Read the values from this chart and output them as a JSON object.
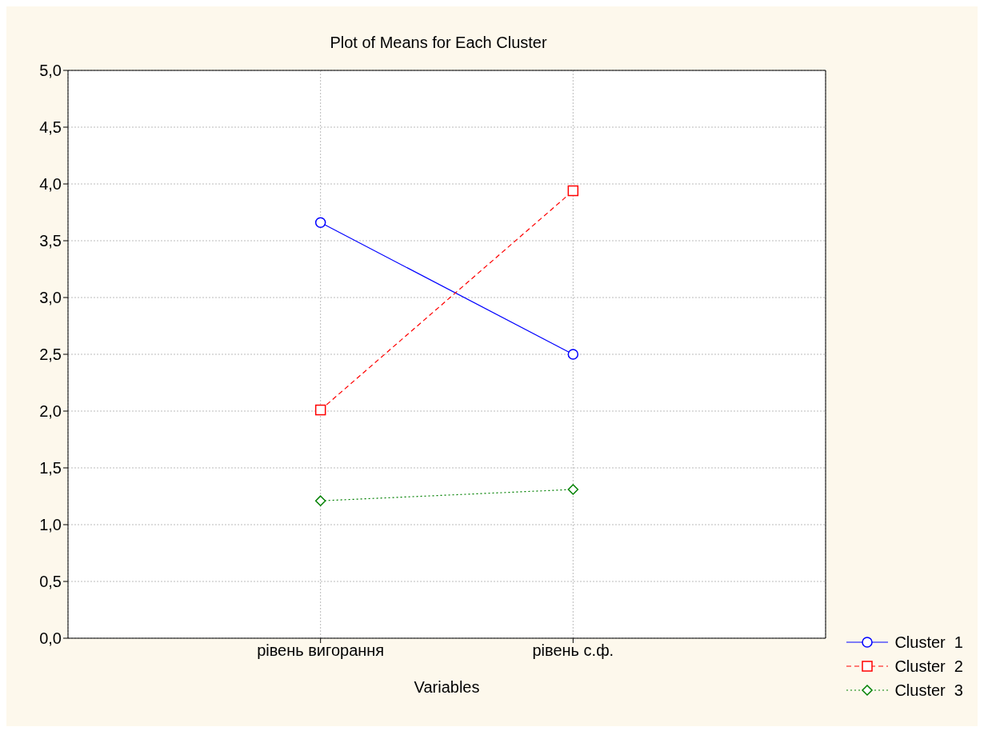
{
  "chart_data": {
    "type": "line",
    "title": "Plot of Means for Each Cluster",
    "xlabel": "Variables",
    "categories": [
      "рівень вигорання",
      "рівень с.ф."
    ],
    "series": [
      {
        "name": "Cluster  1",
        "color": "#0000ff",
        "values": [
          3.66,
          2.5
        ],
        "marker": "circle",
        "line_style": "solid"
      },
      {
        "name": "Cluster  2",
        "color": "#ff0000",
        "values": [
          2.01,
          3.94
        ],
        "marker": "square",
        "line_style": "dashed"
      },
      {
        "name": "Cluster  3",
        "color": "#008000",
        "values": [
          1.21,
          1.31
        ],
        "marker": "diamond",
        "line_style": "dotted"
      }
    ],
    "ylim": [
      0,
      5
    ],
    "yticks": [
      {
        "value": 0,
        "label": "0,0"
      },
      {
        "value": 0.5,
        "label": "0,5"
      },
      {
        "value": 1,
        "label": "1,0"
      },
      {
        "value": 1.5,
        "label": "1,5"
      },
      {
        "value": 2,
        "label": "2,0"
      },
      {
        "value": 2.5,
        "label": "2,5"
      },
      {
        "value": 3,
        "label": "3,0"
      },
      {
        "value": 3.5,
        "label": "3,5"
      },
      {
        "value": 4,
        "label": "4,0"
      },
      {
        "value": 4.5,
        "label": "4,5"
      },
      {
        "value": 5,
        "label": "5,0"
      }
    ],
    "grid": true,
    "legend": "bottom right"
  }
}
